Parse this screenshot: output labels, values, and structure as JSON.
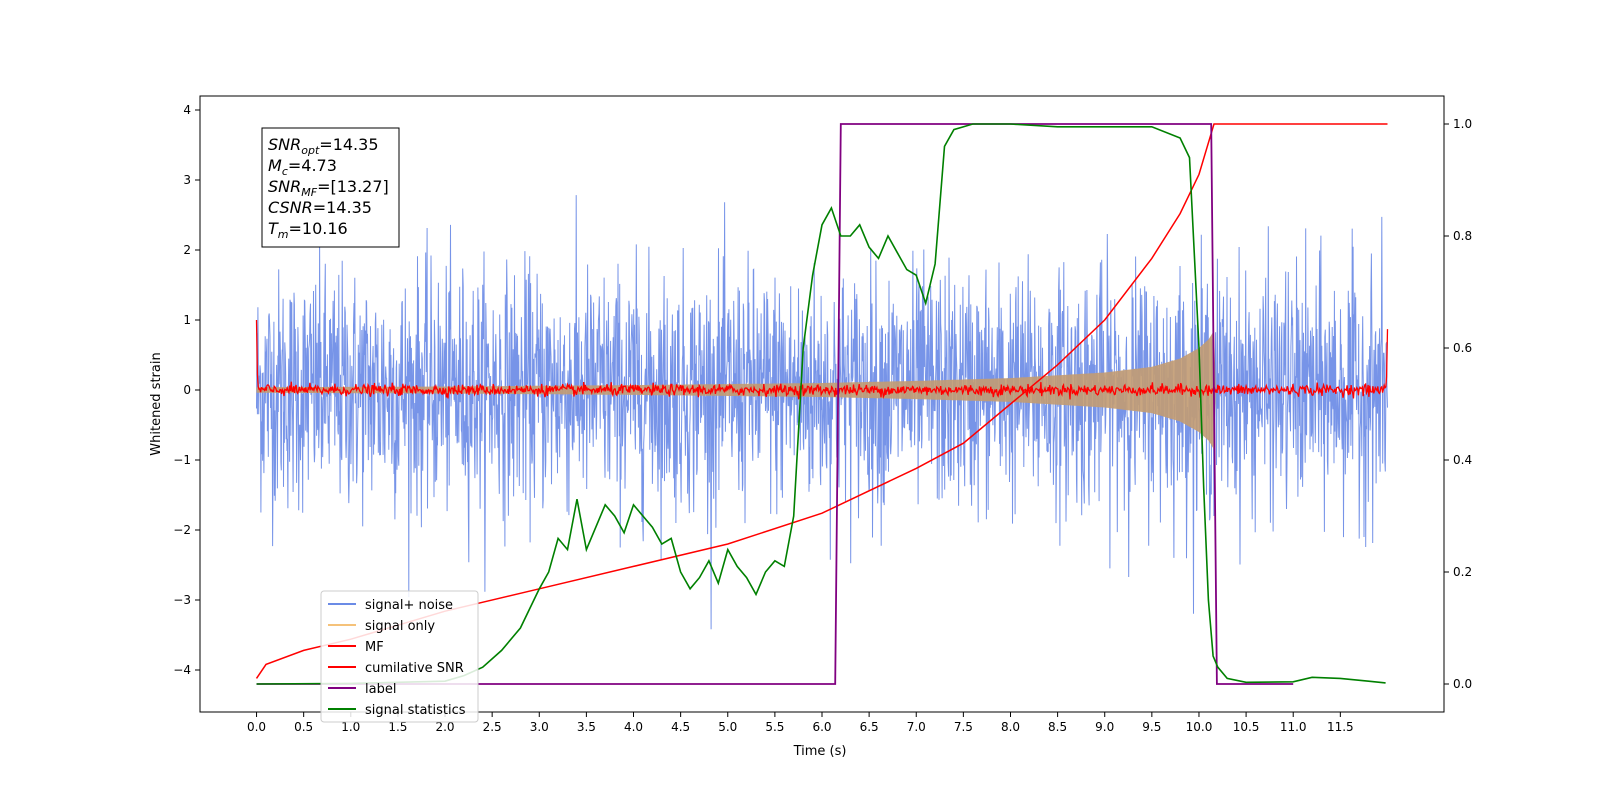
{
  "chart_data": {
    "type": "line",
    "xlabel": "Time (s)",
    "ylabel": "Whitened strain",
    "xlim": [
      -0.6,
      12.6
    ],
    "ylim": [
      -4.6,
      4.2
    ],
    "y2lim": [
      -0.05,
      1.05
    ],
    "x_ticks": [
      0.0,
      0.5,
      1.0,
      1.5,
      2.0,
      2.5,
      3.0,
      3.5,
      4.0,
      4.5,
      5.0,
      5.5,
      6.0,
      6.5,
      7.0,
      7.5,
      8.0,
      8.5,
      9.0,
      9.5,
      10.0,
      10.5,
      11.0,
      11.5
    ],
    "x_tick_labels": [
      "0.0",
      "0.5",
      "1.0",
      "1.5",
      "2.0",
      "2.5",
      "3.0",
      "3.5",
      "4.0",
      "4.5",
      "5.0",
      "5.5",
      "6.0",
      "6.5",
      "7.0",
      "7.5",
      "8.0",
      "8.5",
      "9.0",
      "9.5",
      "10.0",
      "10.5",
      "11.0",
      "11.5"
    ],
    "y_ticks": [
      -4,
      -3,
      -2,
      -1,
      0,
      1,
      2,
      3,
      4
    ],
    "y_tick_labels": [
      "−4",
      "−3",
      "−2",
      "−1",
      "0",
      "1",
      "2",
      "3",
      "4"
    ],
    "y2_ticks": [
      0.0,
      0.2,
      0.4,
      0.6,
      0.8,
      1.0
    ],
    "y2_tick_labels": [
      "0.0",
      "0.2",
      "0.4",
      "0.6",
      "0.8",
      "1.0"
    ],
    "grid": false,
    "legend_position": "lower-left",
    "legend": [
      {
        "label": "signal+ noise",
        "color": "#6b8be6"
      },
      {
        "label": "signal only",
        "color": "#f5c27a"
      },
      {
        "label": "MF",
        "color": "#ff0000"
      },
      {
        "label": "cumilative SNR",
        "color": "#ff0000"
      },
      {
        "label": "label",
        "color": "#800080"
      },
      {
        "label": "signal statistics",
        "color": "#008000"
      }
    ],
    "annotation": [
      {
        "sym": "SNR",
        "sub": "opt",
        "value": "=14.35"
      },
      {
        "sym": "M",
        "sub": "c",
        "value": "=4.73"
      },
      {
        "sym": "SNR",
        "sub": "MF",
        "value": "=[13.27]"
      },
      {
        "sym": "CSNR",
        "sub": "",
        "value": "=14.35"
      },
      {
        "sym": "T",
        "sub": "m",
        "value": "=10.16"
      }
    ],
    "series": [
      {
        "name": "signal+ noise",
        "axis": "left",
        "x_range": [
          0.0,
          12.0
        ],
        "description_stats": {
          "typical_range": [
            -2.0,
            2.2
          ],
          "max": 3.8,
          "min": -4.15
        }
      },
      {
        "name": "signal only",
        "axis": "left",
        "envelope": {
          "x": [
            0.0,
            2.0,
            4.0,
            6.0,
            7.0,
            8.0,
            9.0,
            9.5,
            9.8,
            10.0,
            10.1,
            10.16,
            10.17,
            12.0
          ],
          "amp": [
            0.04,
            0.05,
            0.07,
            0.1,
            0.13,
            0.17,
            0.25,
            0.33,
            0.45,
            0.6,
            0.72,
            0.85,
            0.0,
            0.0
          ]
        }
      },
      {
        "name": "MF",
        "axis": "left",
        "x_range": [
          0.0,
          12.0
        ],
        "start_value": 1.0,
        "end_value": 0.87,
        "noise_amplitude": 0.08
      },
      {
        "name": "cumilative SNR",
        "axis": "right",
        "x": [
          0.0,
          0.1,
          0.5,
          1.0,
          2.0,
          3.0,
          4.0,
          5.0,
          6.0,
          7.0,
          7.5,
          8.0,
          8.5,
          9.0,
          9.5,
          9.8,
          10.0,
          10.16,
          10.2,
          12.0
        ],
        "y": [
          0.01,
          0.035,
          0.06,
          0.08,
          0.13,
          0.17,
          0.21,
          0.25,
          0.305,
          0.385,
          0.43,
          0.5,
          0.57,
          0.65,
          0.76,
          0.84,
          0.91,
          1.0,
          1.0,
          1.0
        ]
      },
      {
        "name": "label",
        "axis": "right",
        "x": [
          0.0,
          6.14,
          6.2,
          10.13,
          10.19,
          11.0
        ],
        "y": [
          0.0,
          0.0,
          1.0,
          1.0,
          0.0,
          0.0
        ]
      },
      {
        "name": "signal statistics",
        "axis": "right",
        "x": [
          0.0,
          1.0,
          2.0,
          2.2,
          2.4,
          2.6,
          2.8,
          3.0,
          3.1,
          3.2,
          3.3,
          3.4,
          3.5,
          3.6,
          3.7,
          3.8,
          3.9,
          4.0,
          4.1,
          4.2,
          4.3,
          4.4,
          4.5,
          4.6,
          4.7,
          4.8,
          4.9,
          5.0,
          5.1,
          5.2,
          5.3,
          5.4,
          5.5,
          5.6,
          5.7,
          5.8,
          5.9,
          6.0,
          6.1,
          6.2,
          6.3,
          6.4,
          6.5,
          6.6,
          6.7,
          6.8,
          6.9,
          7.0,
          7.1,
          7.2,
          7.3,
          7.4,
          7.6,
          8.0,
          8.5,
          9.0,
          9.5,
          9.8,
          9.9,
          10.0,
          10.05,
          10.1,
          10.15,
          10.2,
          10.3,
          10.5,
          11.0,
          11.2,
          11.5,
          11.8,
          11.98
        ],
        "y": [
          0.0,
          0.001,
          0.005,
          0.015,
          0.03,
          0.06,
          0.1,
          0.17,
          0.2,
          0.26,
          0.24,
          0.33,
          0.24,
          0.28,
          0.32,
          0.3,
          0.27,
          0.32,
          0.3,
          0.28,
          0.25,
          0.26,
          0.2,
          0.17,
          0.19,
          0.22,
          0.18,
          0.24,
          0.21,
          0.19,
          0.16,
          0.2,
          0.22,
          0.21,
          0.3,
          0.6,
          0.73,
          0.82,
          0.85,
          0.8,
          0.8,
          0.82,
          0.78,
          0.76,
          0.8,
          0.77,
          0.74,
          0.73,
          0.68,
          0.75,
          0.96,
          0.99,
          1.0,
          1.0,
          0.995,
          0.995,
          0.995,
          0.975,
          0.94,
          0.6,
          0.35,
          0.15,
          0.05,
          0.03,
          0.01,
          0.003,
          0.004,
          0.012,
          0.01,
          0.005,
          0.002
        ]
      }
    ]
  }
}
